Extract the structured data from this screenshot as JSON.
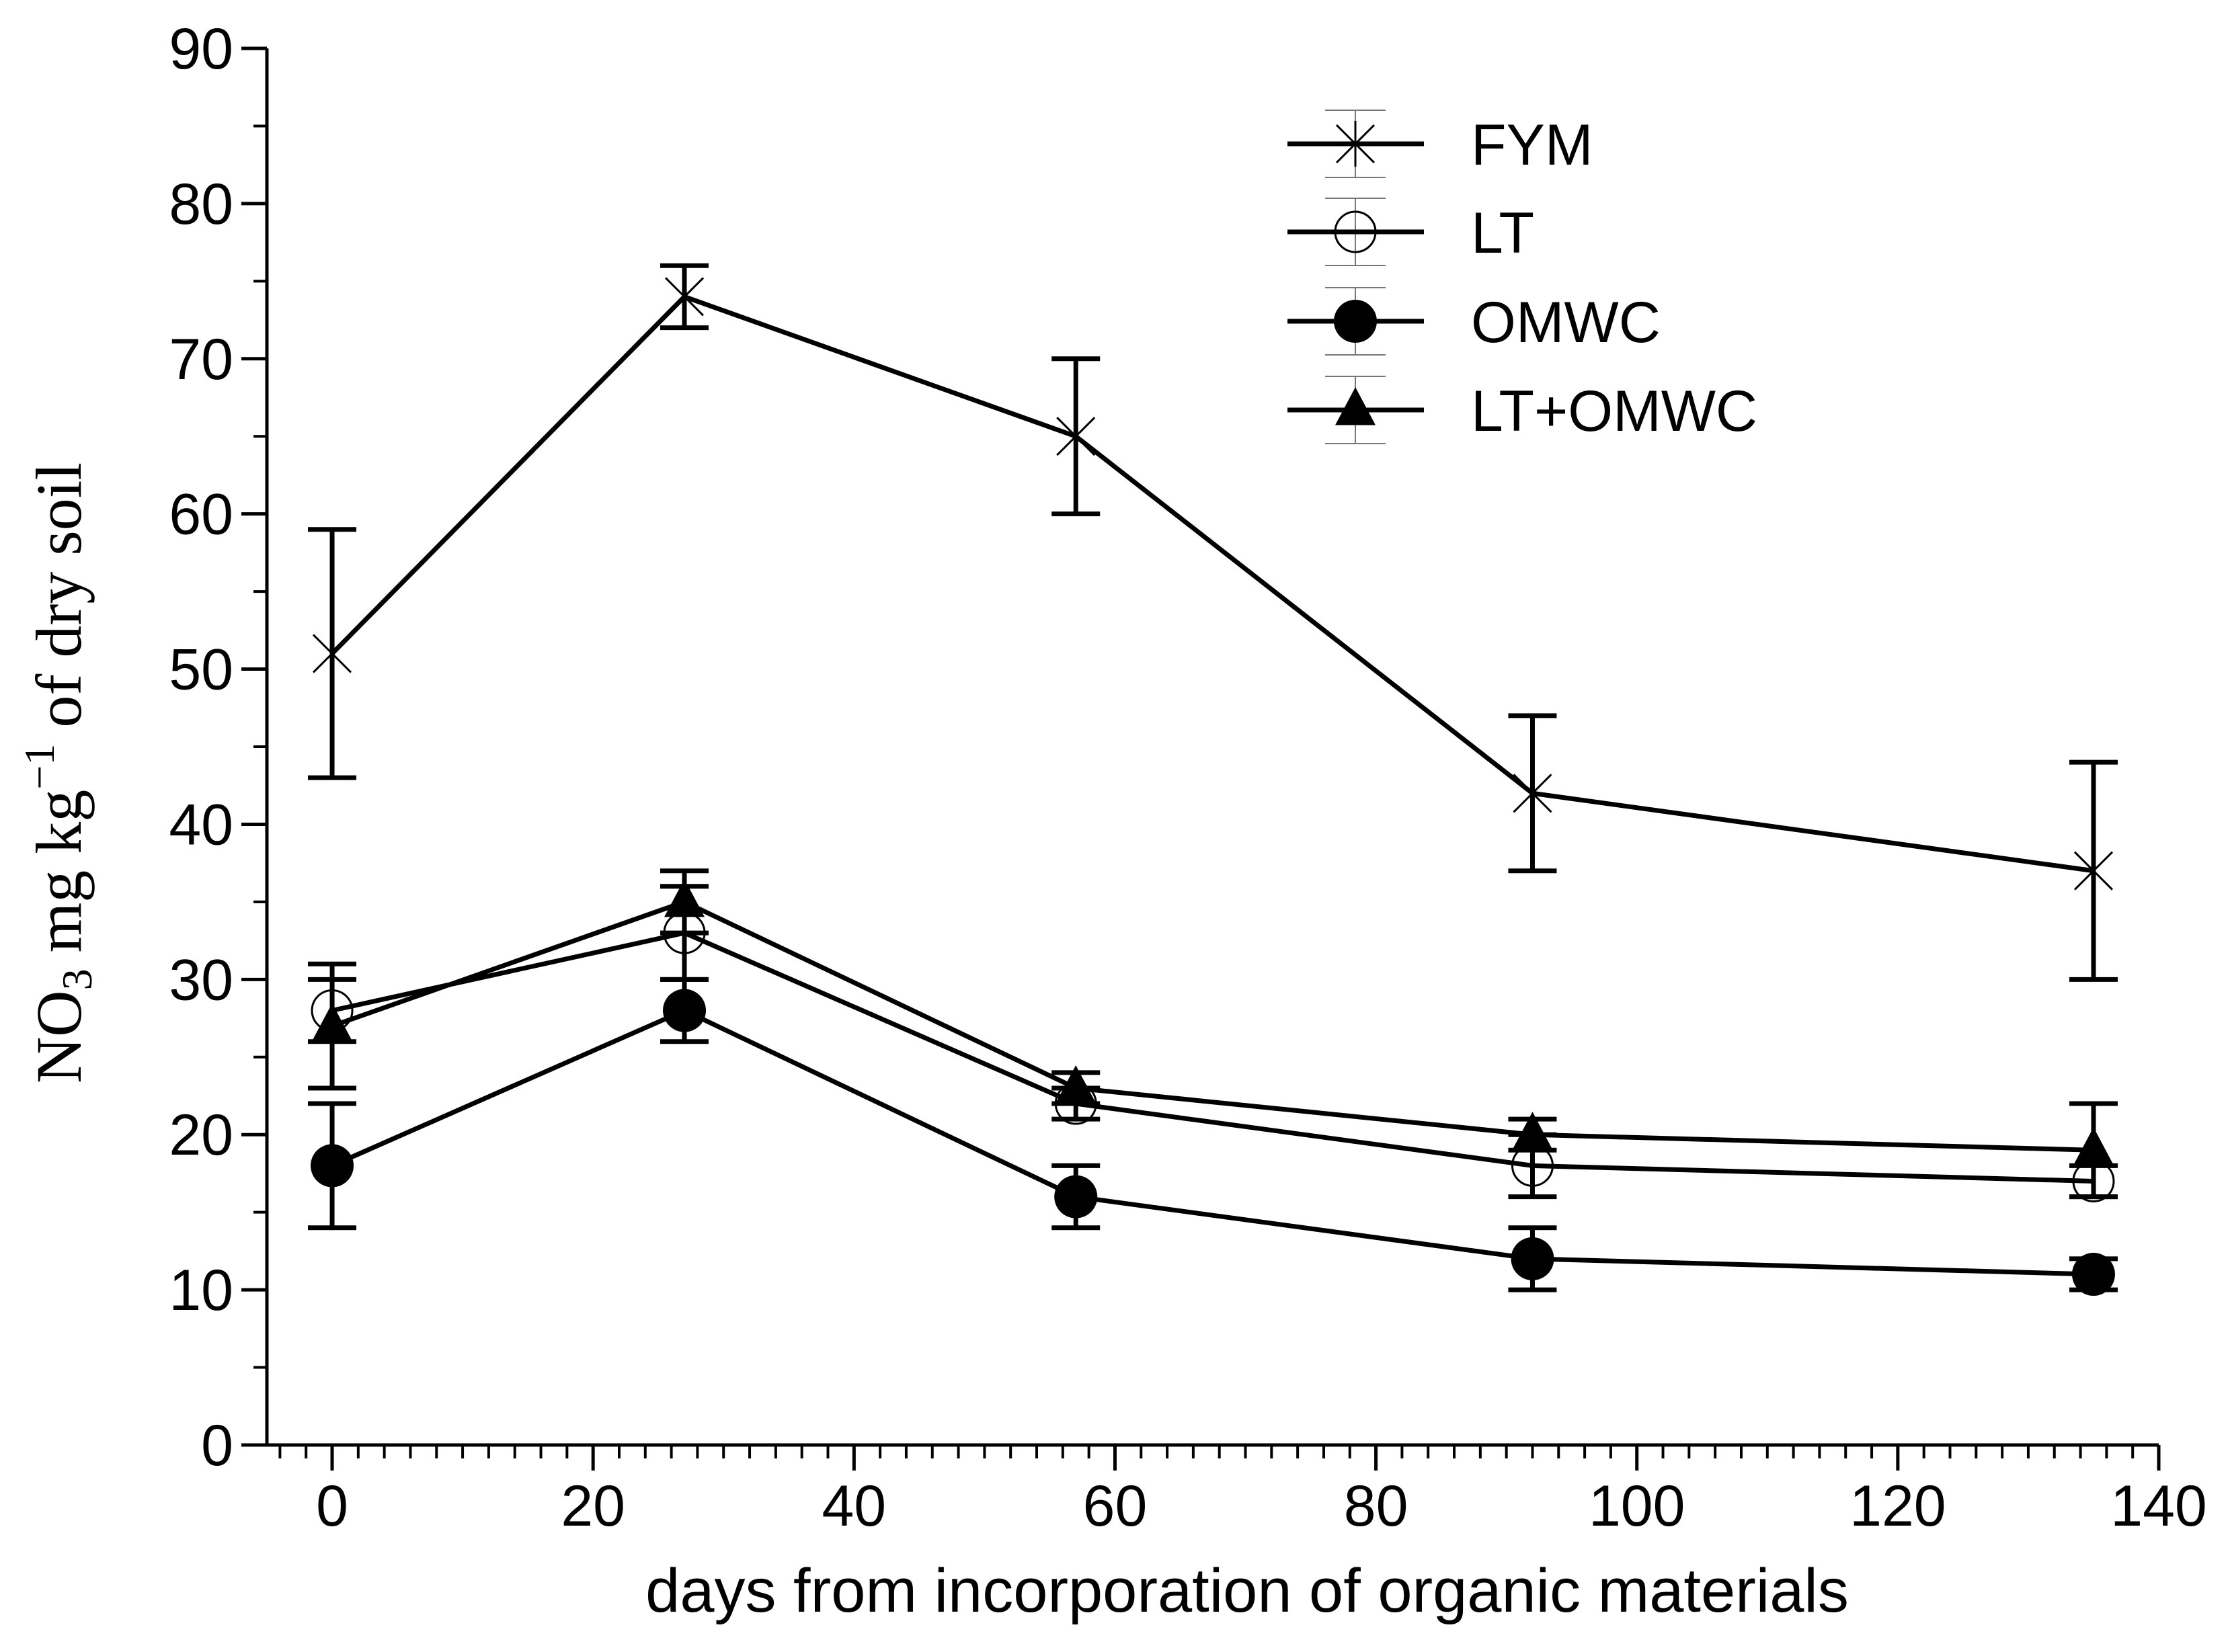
{
  "chart_data": {
    "type": "line",
    "title": "",
    "xlabel": "days from incorporation of organic materials",
    "ylabel": {
      "prefix": "NO",
      "subscript": "3",
      "middle": " mg kg",
      "superscript": "−1",
      "suffix": " of dry soil"
    },
    "xlim": [
      -5,
      140
    ],
    "ylim": [
      0,
      90
    ],
    "xticks": [
      0,
      20,
      40,
      60,
      80,
      100,
      120,
      140
    ],
    "yticks": [
      0,
      10,
      20,
      30,
      40,
      50,
      60,
      70,
      80,
      90
    ],
    "x_minor_step": 2,
    "y_minor_step": 5,
    "grid": false,
    "legend_position": "top-right",
    "series": [
      {
        "name": "FYM",
        "marker": "asterisk",
        "x": [
          0,
          27,
          57,
          92,
          135
        ],
        "values": [
          51,
          74,
          65,
          42,
          37
        ],
        "errors": [
          8,
          2,
          5,
          5,
          7
        ]
      },
      {
        "name": "LT",
        "marker": "open-circle",
        "x": [
          0,
          27,
          57,
          92,
          135
        ],
        "values": [
          28,
          33,
          22,
          18,
          17
        ],
        "errors": [
          2,
          3,
          1,
          2,
          1
        ]
      },
      {
        "name": "OMWC",
        "marker": "filled-circle",
        "x": [
          0,
          27,
          57,
          92,
          135
        ],
        "values": [
          18,
          28,
          16,
          12,
          11
        ],
        "errors": [
          4,
          2,
          2,
          2,
          1
        ]
      },
      {
        "name": "LT+OMWC",
        "marker": "filled-triangle",
        "x": [
          0,
          27,
          57,
          92,
          135
        ],
        "values": [
          27,
          35,
          23,
          20,
          19
        ],
        "errors": [
          4,
          2,
          1,
          1,
          3
        ]
      }
    ]
  }
}
